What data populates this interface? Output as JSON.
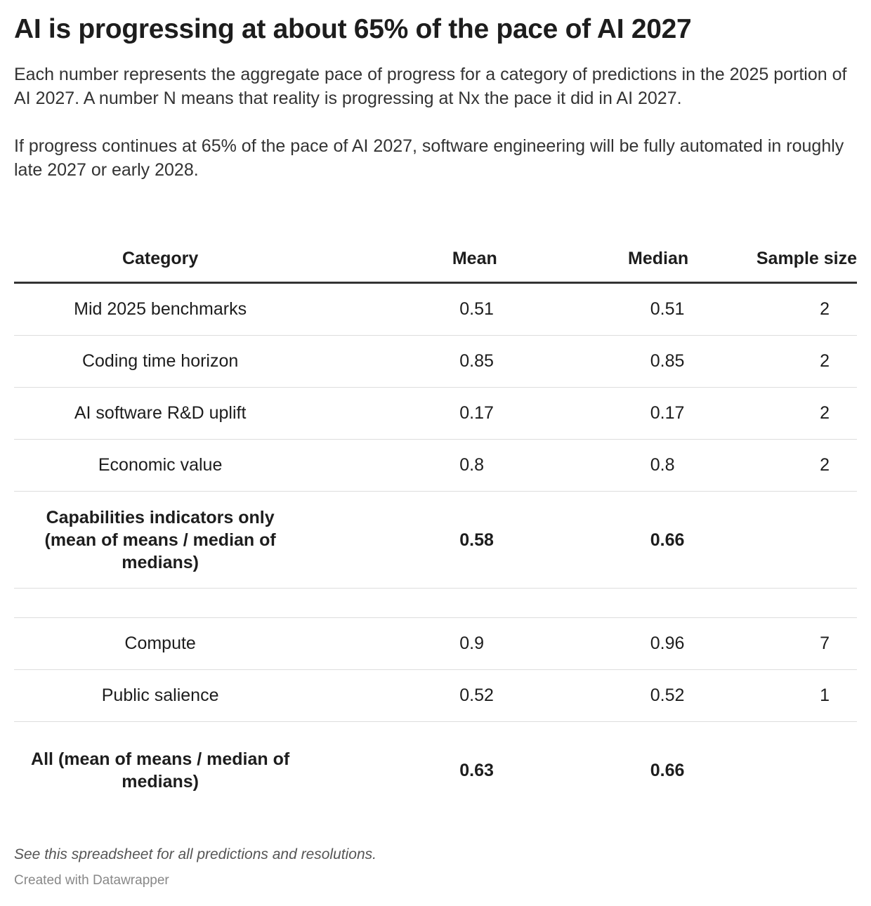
{
  "title": "AI is progressing at about 65% of the pace of AI 2027",
  "description": [
    "Each number represents the aggregate pace of progress for a category of predictions in the 2025 portion of AI 2027. A number N means that reality is progressing at Nx the pace it did in AI 2027.",
    "If progress continues at 65% of the pace of AI 2027, software engineering will be fully automated in roughly late 2027 or early 2028."
  ],
  "table": {
    "headers": [
      "Category",
      "Mean",
      "Median",
      "Sample size"
    ],
    "rows": [
      {
        "category": "Mid 2025 benchmarks",
        "mean": "0.51",
        "median": "0.51",
        "sample": "2"
      },
      {
        "category": "Coding time horizon",
        "mean": "0.85",
        "median": "0.85",
        "sample": "2"
      },
      {
        "category": "AI software R&D uplift",
        "mean": "0.17",
        "median": "0.17",
        "sample": "2"
      },
      {
        "category": "Economic value",
        "mean": "0.8",
        "median": "0.8",
        "sample": "2"
      },
      {
        "category": "Capabilities indicators only (mean of means / median of medians)",
        "mean": "0.58",
        "median": "0.66",
        "sample": ""
      },
      {
        "category": "",
        "mean": "",
        "median": "",
        "sample": ""
      },
      {
        "category": "Compute",
        "mean": "0.9",
        "median": "0.96",
        "sample": "7"
      },
      {
        "category": "Public salience",
        "mean": "0.52",
        "median": "0.52",
        "sample": "1"
      },
      {
        "category": "All (mean of means / median of medians)",
        "mean": "0.63",
        "median": "0.66",
        "sample": ""
      }
    ]
  },
  "notes": "See this spreadsheet for all predictions and resolutions.",
  "credit": "Created with Datawrapper"
}
